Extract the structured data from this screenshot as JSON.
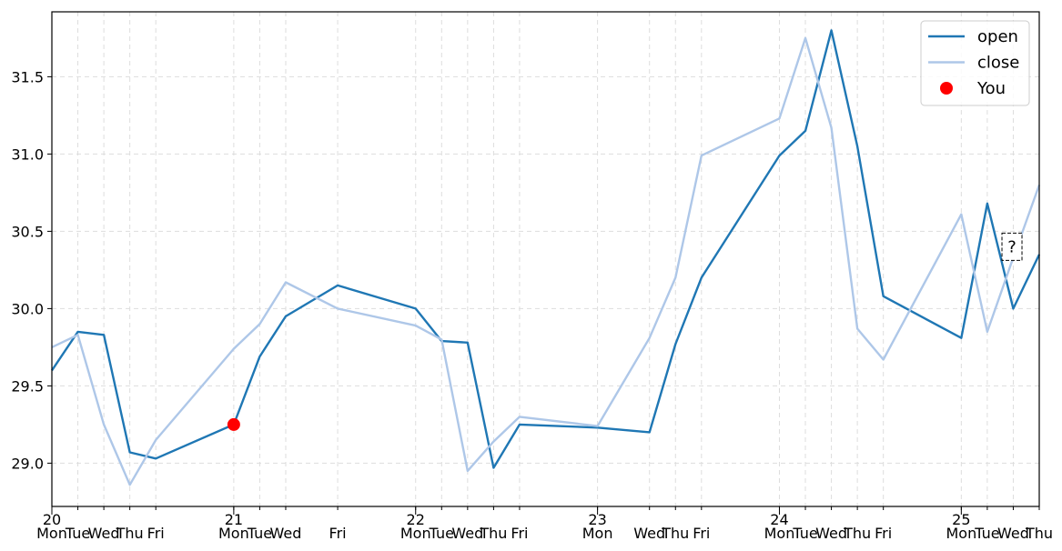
{
  "chart_data": {
    "type": "line",
    "title": "",
    "xlabel": "",
    "ylabel": "",
    "grid": true,
    "legend_position": "top-right",
    "colors": {
      "open": "#1f77b4",
      "close": "#aec7e8",
      "marker": "#ff0000",
      "grid": "#dddddd"
    },
    "x_range": [
      0,
      38
    ],
    "y_range": [
      28.72,
      31.92
    ],
    "y_ticks": [
      29.0,
      29.5,
      30.0,
      30.5,
      31.0,
      31.5
    ],
    "y_tick_labels": [
      "29.0",
      "29.5",
      "30.0",
      "30.5",
      "31.0",
      "31.5"
    ],
    "x_ticks": [
      0,
      1,
      2,
      3,
      4,
      7,
      8,
      9,
      11,
      14,
      15,
      16,
      17,
      18,
      21,
      23,
      24,
      25,
      28,
      29,
      30,
      31,
      32,
      35,
      36,
      37,
      38
    ],
    "x_weekday_labels": [
      "Mon",
      "Tue",
      "Wed",
      "Thu",
      "Fri",
      "Mon",
      "Tue",
      "Wed",
      "Fri",
      "Mon",
      "Tue",
      "Wed",
      "Thu",
      "Fri",
      "Mon",
      "Wed",
      "Thu",
      "Fri",
      "Mon",
      "Tue",
      "Wed",
      "Thu",
      "Fri",
      "Mon",
      "Tue",
      "Wed",
      "Thu"
    ],
    "x_major_ticks": [
      0,
      7,
      14,
      21,
      28,
      35
    ],
    "x_major_labels": [
      "20",
      "21",
      "22",
      "23",
      "24",
      "25"
    ],
    "series": [
      {
        "name": "open",
        "x": [
          0,
          1,
          2,
          3,
          4,
          7,
          8,
          9,
          11,
          14,
          15,
          16,
          17,
          18,
          21,
          23,
          24,
          25,
          28,
          29,
          30,
          31,
          32,
          35,
          36,
          37,
          38
        ],
        "y": [
          29.6,
          29.85,
          29.83,
          29.07,
          29.03,
          29.25,
          29.69,
          29.95,
          30.15,
          30.0,
          29.79,
          29.78,
          28.97,
          29.25,
          29.23,
          29.2,
          29.77,
          30.2,
          30.99,
          31.15,
          31.8,
          31.05,
          30.08,
          29.81,
          30.68,
          30.0,
          30.35
        ]
      },
      {
        "name": "close",
        "x": [
          0,
          1,
          2,
          3,
          4,
          7,
          8,
          9,
          11,
          14,
          15,
          16,
          17,
          18,
          21,
          23,
          24,
          25,
          28,
          29,
          30,
          31,
          32,
          35,
          36,
          37,
          38
        ],
        "y": [
          29.75,
          29.83,
          29.25,
          28.86,
          29.15,
          29.74,
          29.9,
          30.17,
          30.0,
          29.89,
          29.8,
          28.95,
          29.14,
          29.3,
          29.24,
          29.81,
          30.2,
          30.99,
          31.23,
          31.75,
          31.17,
          29.87,
          29.67,
          30.61,
          29.85,
          30.33,
          30.8
        ]
      }
    ],
    "highlight": {
      "name": "You",
      "x": 7,
      "y": 29.25
    },
    "annotation": {
      "text": "?",
      "x": 36.95,
      "y": 30.4
    }
  }
}
